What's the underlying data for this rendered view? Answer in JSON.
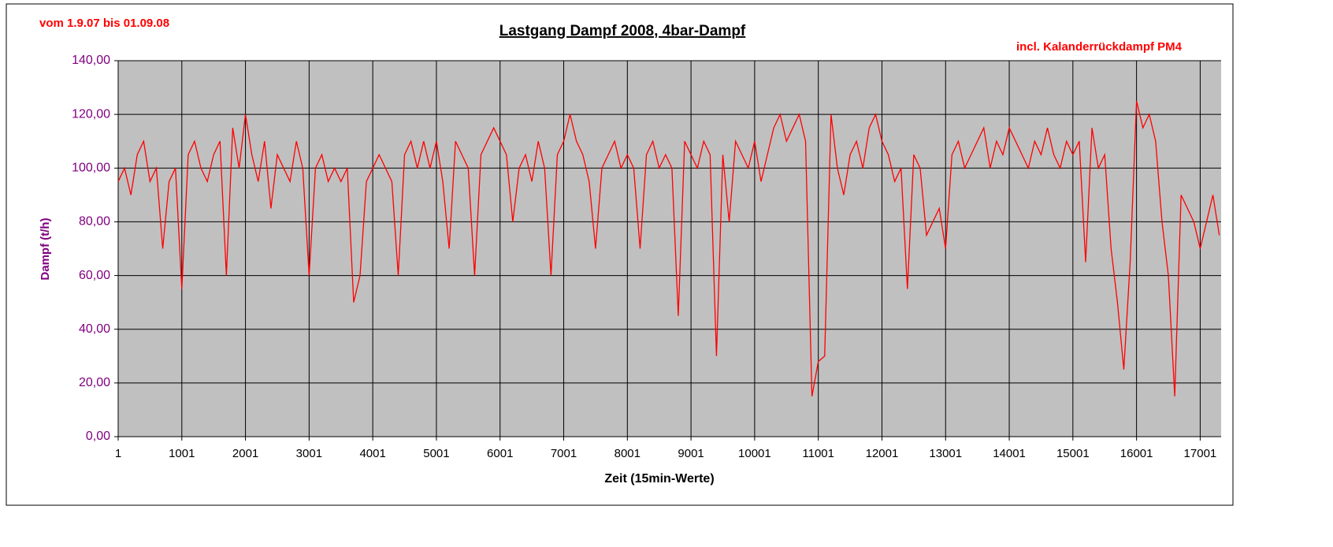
{
  "chart_data": {
    "type": "line",
    "title": "Lastgang Dampf 2008, 4bar-Dampf",
    "annotations": [
      "vom 1.9.07 bis 01.09.08",
      "incl. Kalanderrückdampf PM4"
    ],
    "x_label": "Zeit (15min-Werte)",
    "y_label": "Dampf (t/h)",
    "x": [
      1,
      101,
      201,
      301,
      401,
      501,
      601,
      701,
      801,
      901,
      1001,
      1101,
      1201,
      1301,
      1401,
      1501,
      1601,
      1701,
      1801,
      1901,
      2001,
      2101,
      2201,
      2301,
      2401,
      2501,
      2601,
      2701,
      2801,
      2901,
      3001,
      3101,
      3201,
      3301,
      3401,
      3501,
      3601,
      3701,
      3801,
      3901,
      4001,
      4101,
      4201,
      4301,
      4401,
      4501,
      4601,
      4701,
      4801,
      4901,
      5001,
      5101,
      5201,
      5301,
      5401,
      5501,
      5601,
      5701,
      5801,
      5901,
      6001,
      6101,
      6201,
      6301,
      6401,
      6501,
      6601,
      6701,
      6801,
      6901,
      7001,
      7101,
      7201,
      7301,
      7401,
      7501,
      7601,
      7701,
      7801,
      7901,
      8001,
      8101,
      8201,
      8301,
      8401,
      8501,
      8601,
      8701,
      8801,
      8901,
      9001,
      9101,
      9201,
      9301,
      9401,
      9501,
      9601,
      9701,
      9801,
      9901,
      10001,
      10101,
      10201,
      10301,
      10401,
      10501,
      10601,
      10701,
      10801,
      10901,
      11001,
      11101,
      11201,
      11301,
      11401,
      11501,
      11601,
      11701,
      11801,
      11901,
      12001,
      12101,
      12201,
      12301,
      12401,
      12501,
      12601,
      12701,
      12801,
      12901,
      13001,
      13101,
      13201,
      13301,
      13401,
      13501,
      13601,
      13701,
      13801,
      13901,
      14001,
      14101,
      14201,
      14301,
      14401,
      14501,
      14601,
      14701,
      14801,
      14901,
      15001,
      15101,
      15201,
      15301,
      15401,
      15501,
      15601,
      15701,
      15801,
      15901,
      16001,
      16101,
      16201,
      16301,
      16401,
      16501,
      16601,
      16701,
      16801,
      16901,
      17001,
      17101,
      17201,
      17301
    ],
    "series": [
      {
        "name": "Dampf",
        "color": "#ff0000",
        "values": [
          95,
          100,
          90,
          105,
          110,
          95,
          100,
          70,
          95,
          100,
          55,
          105,
          110,
          100,
          95,
          105,
          110,
          60,
          115,
          100,
          120,
          105,
          95,
          110,
          85,
          105,
          100,
          95,
          110,
          100,
          60,
          100,
          105,
          95,
          100,
          95,
          100,
          50,
          60,
          95,
          100,
          105,
          100,
          95,
          60,
          105,
          110,
          100,
          110,
          100,
          110,
          95,
          70,
          110,
          105,
          100,
          60,
          105,
          110,
          115,
          110,
          105,
          80,
          100,
          105,
          95,
          110,
          100,
          60,
          105,
          110,
          120,
          110,
          105,
          95,
          70,
          100,
          105,
          110,
          100,
          105,
          100,
          70,
          105,
          110,
          100,
          105,
          100,
          45,
          110,
          105,
          100,
          110,
          105,
          30,
          105,
          80,
          110,
          105,
          100,
          110,
          95,
          105,
          115,
          120,
          110,
          115,
          120,
          110,
          15,
          28,
          30,
          120,
          100,
          90,
          105,
          110,
          100,
          115,
          120,
          110,
          105,
          95,
          100,
          55,
          105,
          100,
          75,
          80,
          85,
          70,
          105,
          110,
          100,
          105,
          110,
          115,
          100,
          110,
          105,
          115,
          110,
          105,
          100,
          110,
          105,
          115,
          105,
          100,
          110,
          105,
          110,
          65,
          115,
          100,
          105,
          70,
          50,
          25,
          65,
          125,
          115,
          120,
          110,
          80,
          60,
          15,
          90,
          85,
          80,
          70,
          80,
          90,
          75
        ]
      }
    ],
    "xlim": [
      1,
      17330
    ],
    "ylim": [
      0,
      140
    ],
    "xticks": [
      1,
      1001,
      2001,
      3001,
      4001,
      5001,
      6001,
      7001,
      8001,
      9001,
      10001,
      11001,
      12001,
      13001,
      14001,
      15001,
      16001,
      17001
    ],
    "yticks": [
      {
        "value": 0,
        "label": "0,00"
      },
      {
        "value": 20,
        "label": "20,00"
      },
      {
        "value": 40,
        "label": "40,00"
      },
      {
        "value": 60,
        "label": "60,00"
      },
      {
        "value": 80,
        "label": "80,00"
      },
      {
        "value": 100,
        "label": "100,00"
      },
      {
        "value": 120,
        "label": "120,00"
      },
      {
        "value": 140,
        "label": "140,00"
      }
    ],
    "grid": true,
    "plot_background": "#c0c0c0"
  }
}
